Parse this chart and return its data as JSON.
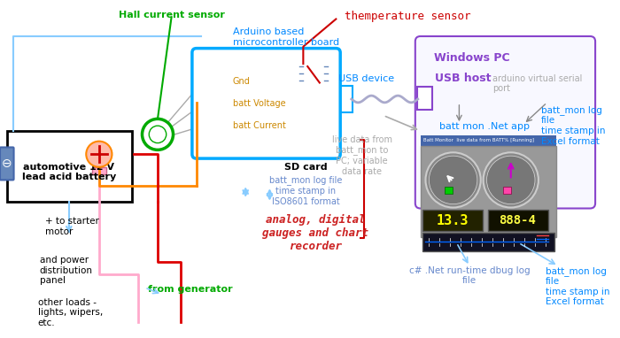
{
  "bg_color": "#ffffff",
  "labels": {
    "hall_sensor": "Hall current sensor",
    "arduino_board": "Arduino based\nmicrocontroller board",
    "temp_sensor": "themperature sensor",
    "usb_device": "USB device",
    "windows_pc": "Windows PC",
    "usb_host": "USB host",
    "arduino_virt": "arduino virtual serial\nport",
    "gnd": "Gnd",
    "batt_voltage": "batt Voltage",
    "batt_current": "batt Current",
    "sd_card": "SD card",
    "sd_log1": "batt_mon log file\ntime stamp in\nISO8601 format",
    "battery_box": "automotive 12 V\nlead acid battery",
    "starter": "+ to starter\nmotor",
    "power_dist": "and power\ndistribution\npanel",
    "from_gen": "from generator",
    "other_loads": "other loads -\nlights, wipers,\netc.",
    "live_data": "live data from\nbatt_mon to\nPC; variable\ndata rate",
    "batt_mon_app": "batt mon .Net app",
    "batt_mon_log_right": "batt_mon log\nfile\ntime stamp in\nExcel format",
    "analog_gauges": "analog, digital\ngauges and chart\nrecorder",
    "csharp_log": "c# .Net run-time dbug log\nfile",
    "batt_mon_log_bottom": "batt_mon log\nfile\ntime stamp in\nExcel format"
  },
  "colors": {
    "hall_sensor_text": "#00aa00",
    "arduino_board_text": "#0088ff",
    "temp_sensor_text": "#cc0000",
    "usb_device_text": "#0088ff",
    "windows_pc_text": "#8844cc",
    "usb_host_text": "#8844cc",
    "arduino_virt_text": "#aaaaaa",
    "gnd_text": "#cc8800",
    "batt_voltage_text": "#cc8800",
    "batt_current_text": "#cc8800",
    "sd_card_text": "#000000",
    "sd_log_text": "#6688cc",
    "battery_box_text": "#000000",
    "starter_text": "#000000",
    "power_dist_text": "#000000",
    "from_gen_text": "#00aa00",
    "other_loads_text": "#000000",
    "live_data_text": "#aaaaaa",
    "batt_mon_app_text": "#0088ff",
    "batt_mon_log_right_text": "#0088ff",
    "analog_gauges_text": "#cc2222",
    "csharp_log_text": "#6688cc",
    "batt_mon_log_bottom_text": "#0088ff",
    "arduino_box": "#00aaff",
    "windows_pc_box": "#8844cc",
    "wire_blue": "#88ccff",
    "wire_red": "#dd0000",
    "wire_pink": "#ffaacc",
    "wire_orange": "#ff8800",
    "wire_green": "#00aa00",
    "wire_gray": "#aaaaaa",
    "usb_cable": "#aaaacc",
    "battery_box_border": "#000000"
  }
}
